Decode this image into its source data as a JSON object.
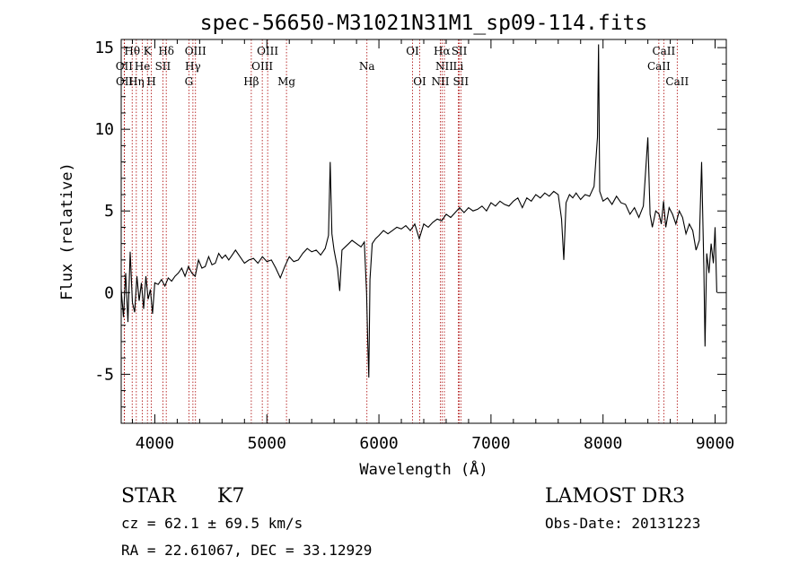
{
  "chart_data": {
    "type": "line",
    "title": "spec-56650-M31021N31M1_sp09-114.fits",
    "xlabel": "Wavelength (Å)",
    "ylabel": "Flux (relative)",
    "xlim": [
      3700,
      9100
    ],
    "ylim": [
      -8,
      15.5
    ],
    "x_ticks": [
      "4000",
      "5000",
      "6000",
      "7000",
      "8000",
      "9000"
    ],
    "y_ticks": [
      "-5",
      "0",
      "5",
      "10",
      "15"
    ],
    "x_tick_values": [
      4000,
      5000,
      6000,
      7000,
      8000,
      9000
    ],
    "y_tick_values": [
      -5,
      0,
      5,
      10,
      15
    ],
    "line_color": "#000000",
    "marker_color": "#aa0000",
    "spectrum": [
      [
        3700,
        0.2
      ],
      [
        3720,
        -1.5
      ],
      [
        3740,
        1.2
      ],
      [
        3760,
        -1.8
      ],
      [
        3780,
        2.5
      ],
      [
        3800,
        -0.6
      ],
      [
        3820,
        -1.2
      ],
      [
        3840,
        1.0
      ],
      [
        3860,
        -0.5
      ],
      [
        3880,
        0.6
      ],
      [
        3900,
        -1.0
      ],
      [
        3920,
        1.0
      ],
      [
        3940,
        -0.4
      ],
      [
        3960,
        0.2
      ],
      [
        3980,
        -1.3
      ],
      [
        4000,
        0.6
      ],
      [
        4030,
        0.5
      ],
      [
        4060,
        0.8
      ],
      [
        4090,
        0.4
      ],
      [
        4120,
        0.9
      ],
      [
        4150,
        0.7
      ],
      [
        4180,
        1.0
      ],
      [
        4210,
        1.2
      ],
      [
        4240,
        1.5
      ],
      [
        4270,
        1.0
      ],
      [
        4300,
        1.6
      ],
      [
        4330,
        1.2
      ],
      [
        4360,
        1.0
      ],
      [
        4390,
        2.0
      ],
      [
        4420,
        1.5
      ],
      [
        4450,
        1.6
      ],
      [
        4480,
        2.2
      ],
      [
        4510,
        1.7
      ],
      [
        4540,
        1.8
      ],
      [
        4570,
        2.4
      ],
      [
        4600,
        2.1
      ],
      [
        4630,
        2.3
      ],
      [
        4660,
        2.0
      ],
      [
        4690,
        2.3
      ],
      [
        4720,
        2.6
      ],
      [
        4760,
        2.2
      ],
      [
        4800,
        1.8
      ],
      [
        4840,
        2.0
      ],
      [
        4880,
        2.1
      ],
      [
        4920,
        1.8
      ],
      [
        4960,
        2.2
      ],
      [
        5000,
        1.9
      ],
      [
        5040,
        2.0
      ],
      [
        5080,
        1.5
      ],
      [
        5120,
        0.9
      ],
      [
        5160,
        1.6
      ],
      [
        5200,
        2.2
      ],
      [
        5240,
        1.9
      ],
      [
        5280,
        2.0
      ],
      [
        5320,
        2.4
      ],
      [
        5360,
        2.7
      ],
      [
        5400,
        2.5
      ],
      [
        5440,
        2.6
      ],
      [
        5480,
        2.3
      ],
      [
        5520,
        2.7
      ],
      [
        5550,
        3.5
      ],
      [
        5565,
        8.0
      ],
      [
        5580,
        3.6
      ],
      [
        5600,
        2.6
      ],
      [
        5630,
        1.5
      ],
      [
        5650,
        0.1
      ],
      [
        5670,
        2.6
      ],
      [
        5700,
        2.8
      ],
      [
        5730,
        3.0
      ],
      [
        5760,
        3.2
      ],
      [
        5800,
        3.0
      ],
      [
        5840,
        2.8
      ],
      [
        5870,
        3.1
      ],
      [
        5890,
        0.0
      ],
      [
        5900,
        -3.0
      ],
      [
        5910,
        -5.2
      ],
      [
        5920,
        0.8
      ],
      [
        5940,
        3.0
      ],
      [
        5970,
        3.3
      ],
      [
        6000,
        3.5
      ],
      [
        6040,
        3.8
      ],
      [
        6080,
        3.6
      ],
      [
        6120,
        3.8
      ],
      [
        6160,
        4.0
      ],
      [
        6200,
        3.9
      ],
      [
        6240,
        4.1
      ],
      [
        6280,
        3.8
      ],
      [
        6320,
        4.2
      ],
      [
        6360,
        3.3
      ],
      [
        6400,
        4.2
      ],
      [
        6440,
        4.0
      ],
      [
        6480,
        4.3
      ],
      [
        6520,
        4.5
      ],
      [
        6560,
        4.4
      ],
      [
        6600,
        4.8
      ],
      [
        6640,
        4.6
      ],
      [
        6680,
        4.9
      ],
      [
        6720,
        5.2
      ],
      [
        6760,
        4.9
      ],
      [
        6800,
        5.2
      ],
      [
        6840,
        5.0
      ],
      [
        6880,
        5.1
      ],
      [
        6920,
        5.3
      ],
      [
        6960,
        5.0
      ],
      [
        7000,
        5.5
      ],
      [
        7040,
        5.3
      ],
      [
        7080,
        5.6
      ],
      [
        7120,
        5.4
      ],
      [
        7160,
        5.3
      ],
      [
        7200,
        5.6
      ],
      [
        7240,
        5.8
      ],
      [
        7280,
        5.2
      ],
      [
        7320,
        5.8
      ],
      [
        7360,
        5.6
      ],
      [
        7400,
        6.0
      ],
      [
        7440,
        5.8
      ],
      [
        7480,
        6.1
      ],
      [
        7520,
        5.9
      ],
      [
        7560,
        6.2
      ],
      [
        7600,
        6.0
      ],
      [
        7630,
        4.5
      ],
      [
        7650,
        2.0
      ],
      [
        7670,
        5.5
      ],
      [
        7700,
        6.0
      ],
      [
        7730,
        5.8
      ],
      [
        7760,
        6.1
      ],
      [
        7800,
        5.7
      ],
      [
        7840,
        6.0
      ],
      [
        7880,
        5.9
      ],
      [
        7920,
        6.5
      ],
      [
        7950,
        9.5
      ],
      [
        7960,
        15.2
      ],
      [
        7970,
        6.2
      ],
      [
        8000,
        5.6
      ],
      [
        8040,
        5.8
      ],
      [
        8080,
        5.4
      ],
      [
        8120,
        5.9
      ],
      [
        8160,
        5.5
      ],
      [
        8200,
        5.4
      ],
      [
        8240,
        4.8
      ],
      [
        8280,
        5.2
      ],
      [
        8320,
        4.6
      ],
      [
        8360,
        5.3
      ],
      [
        8400,
        9.5
      ],
      [
        8420,
        4.8
      ],
      [
        8440,
        4.0
      ],
      [
        8470,
        5.0
      ],
      [
        8500,
        4.8
      ],
      [
        8520,
        4.2
      ],
      [
        8540,
        5.6
      ],
      [
        8560,
        4.0
      ],
      [
        8590,
        5.2
      ],
      [
        8620,
        4.8
      ],
      [
        8650,
        4.2
      ],
      [
        8680,
        5.0
      ],
      [
        8710,
        4.6
      ],
      [
        8740,
        3.6
      ],
      [
        8770,
        4.2
      ],
      [
        8800,
        3.8
      ],
      [
        8830,
        2.6
      ],
      [
        8860,
        3.2
      ],
      [
        8880,
        8.0
      ],
      [
        8900,
        1.5
      ],
      [
        8910,
        -3.3
      ],
      [
        8925,
        2.4
      ],
      [
        8945,
        1.2
      ],
      [
        8965,
        3.0
      ],
      [
        8985,
        1.8
      ],
      [
        9000,
        4.0
      ],
      [
        9015,
        0.0
      ]
    ],
    "lines": [
      {
        "name": "Hθ",
        "wavelength": 3798,
        "row": 0
      },
      {
        "name": "K",
        "wavelength": 3934,
        "row": 0
      },
      {
        "name": "Hδ",
        "wavelength": 4102,
        "row": 0
      },
      {
        "name": "OIII",
        "wavelength": 4363,
        "row": 0
      },
      {
        "name": "OIII",
        "wavelength": 5007,
        "row": 0
      },
      {
        "name": "OI",
        "wavelength": 6300,
        "row": 0
      },
      {
        "name": "Hα",
        "wavelength": 6563,
        "row": 0
      },
      {
        "name": "SII",
        "wavelength": 6717,
        "row": 0
      },
      {
        "name": "CaII",
        "wavelength": 8542,
        "row": 0
      },
      {
        "name": "OII",
        "wavelength": 3727,
        "row": 1
      },
      {
        "name": "He",
        "wavelength": 3889,
        "row": 1
      },
      {
        "name": "SII",
        "wavelength": 4072,
        "row": 1
      },
      {
        "name": "Hγ",
        "wavelength": 4340,
        "row": 1
      },
      {
        "name": "OIII",
        "wavelength": 4959,
        "row": 1
      },
      {
        "name": "Na",
        "wavelength": 5893,
        "row": 1
      },
      {
        "name": "NII",
        "wavelength": 6584,
        "row": 1
      },
      {
        "name": "Li",
        "wavelength": 6708,
        "row": 1
      },
      {
        "name": "CaII",
        "wavelength": 8498,
        "row": 1
      },
      {
        "name": "OII",
        "wavelength": 3729,
        "row": 2
      },
      {
        "name": "Hη",
        "wavelength": 3835,
        "row": 2
      },
      {
        "name": "H",
        "wavelength": 3969,
        "row": 2
      },
      {
        "name": "G",
        "wavelength": 4304,
        "row": 2
      },
      {
        "name": "Hβ",
        "wavelength": 4861,
        "row": 2
      },
      {
        "name": "Mg",
        "wavelength": 5175,
        "row": 2
      },
      {
        "name": "OI",
        "wavelength": 6364,
        "row": 2
      },
      {
        "name": "NII",
        "wavelength": 6548,
        "row": 2
      },
      {
        "name": "SII",
        "wavelength": 6731,
        "row": 2
      },
      {
        "name": "CaII",
        "wavelength": 8662,
        "row": 2
      }
    ]
  },
  "info": {
    "object_class": "STAR",
    "subclass": "K7",
    "survey": "LAMOST DR3",
    "redshift": "cz =  62.1 ± 69.5 km/s",
    "obs_date": "Obs-Date: 20131223",
    "coords": "RA =  22.61067, DEC =  33.12929"
  }
}
